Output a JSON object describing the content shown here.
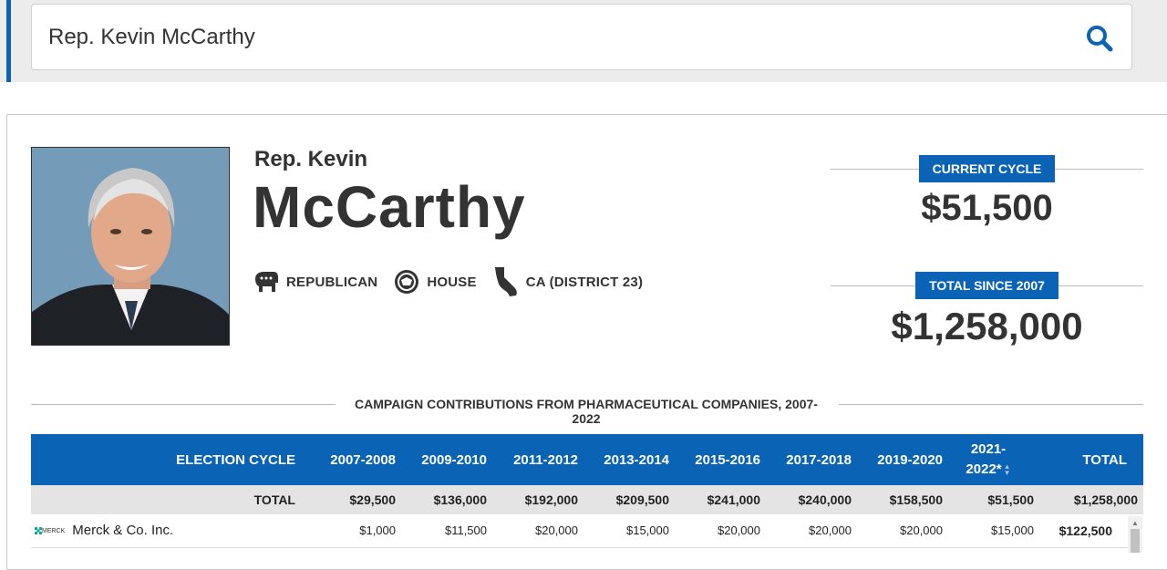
{
  "search": {
    "value": "Rep. Kevin McCarthy"
  },
  "profile": {
    "prefix": "Rep. Kevin",
    "last_name": "McCarthy",
    "party": "REPUBLICAN",
    "chamber": "HOUSE",
    "district": "CA (DISTRICT 23)"
  },
  "stats": {
    "current_label": "CURRENT CYCLE",
    "current_amount": "$51,500",
    "total_label": "TOTAL SINCE 2007",
    "total_amount": "$1,258,000"
  },
  "section_title": "CAMPAIGN CONTRIBUTIONS FROM PHARMACEUTICAL COMPANIES, 2007-2022",
  "table": {
    "headers": [
      "ELECTION CYCLE",
      "2007-2008",
      "2009-2010",
      "2011-2012",
      "2013-2014",
      "2015-2016",
      "2017-2018",
      "2019-2020",
      "2021-2022*",
      "TOTAL"
    ],
    "header_2021_line1": "2021-",
    "header_2021_line2": "2022*",
    "total_row": [
      "TOTAL",
      "$29,500",
      "$136,000",
      "$192,000",
      "$209,500",
      "$241,000",
      "$240,000",
      "$158,500",
      "$51,500",
      "$1,258,000"
    ],
    "rows": [
      {
        "logo_text": "MERCK",
        "name": "Merck & Co. Inc.",
        "values": [
          "$1,000",
          "$11,500",
          "$20,000",
          "$15,000",
          "$20,000",
          "$20,000",
          "$20,000",
          "$15,000",
          "$122,500"
        ]
      }
    ]
  },
  "colors": {
    "accent": "#0a63b4",
    "header_bg": "#0a63b4",
    "total_row_bg": "#e4e4e4",
    "search_band_bg": "#ececec"
  }
}
